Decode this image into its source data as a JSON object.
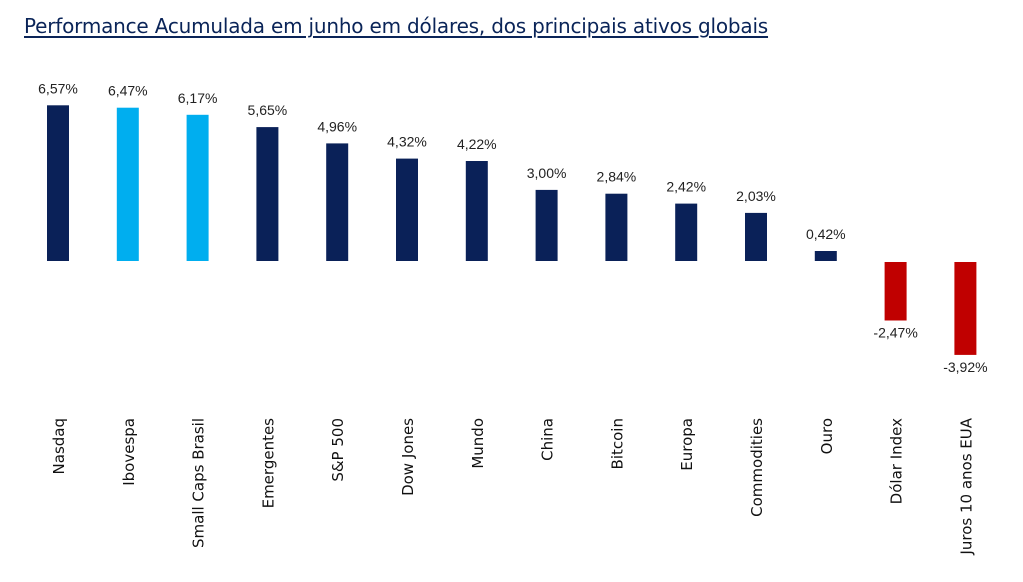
{
  "title": "Performance Acumulada em junho em dólares, dos principais ativos globais",
  "colors": {
    "default": "#0a2158",
    "highlight": "#00aeef",
    "negative": "#c00000"
  },
  "chart_data": {
    "type": "bar",
    "title": "Performance Acumulada em junho em dólares, dos principais ativos globais",
    "xlabel": "",
    "ylabel": "",
    "grid": false,
    "categories": [
      "Nasdaq",
      "Ibovespa",
      "Small Caps Brasil",
      "Emergentes",
      "S&P 500",
      "Dow Jones",
      "Mundo",
      "China",
      "Bitcoin",
      "Europa",
      "Commodities",
      "Ouro",
      "Dólar Index",
      "Juros 10 anos EUA"
    ],
    "values": [
      6.57,
      6.47,
      6.17,
      5.65,
      4.96,
      4.32,
      4.22,
      3.0,
      2.84,
      2.42,
      2.03,
      0.42,
      -2.47,
      -3.92
    ],
    "labels": [
      "6,57%",
      "6,47%",
      "6,17%",
      "5,65%",
      "4,96%",
      "4,32%",
      "4,22%",
      "3,00%",
      "2,84%",
      "2,42%",
      "2,03%",
      "0,42%",
      "-2,47%",
      "-3,92%"
    ],
    "bar_colors": [
      "default",
      "highlight",
      "highlight",
      "default",
      "default",
      "default",
      "default",
      "default",
      "default",
      "default",
      "default",
      "default",
      "negative",
      "negative"
    ]
  }
}
